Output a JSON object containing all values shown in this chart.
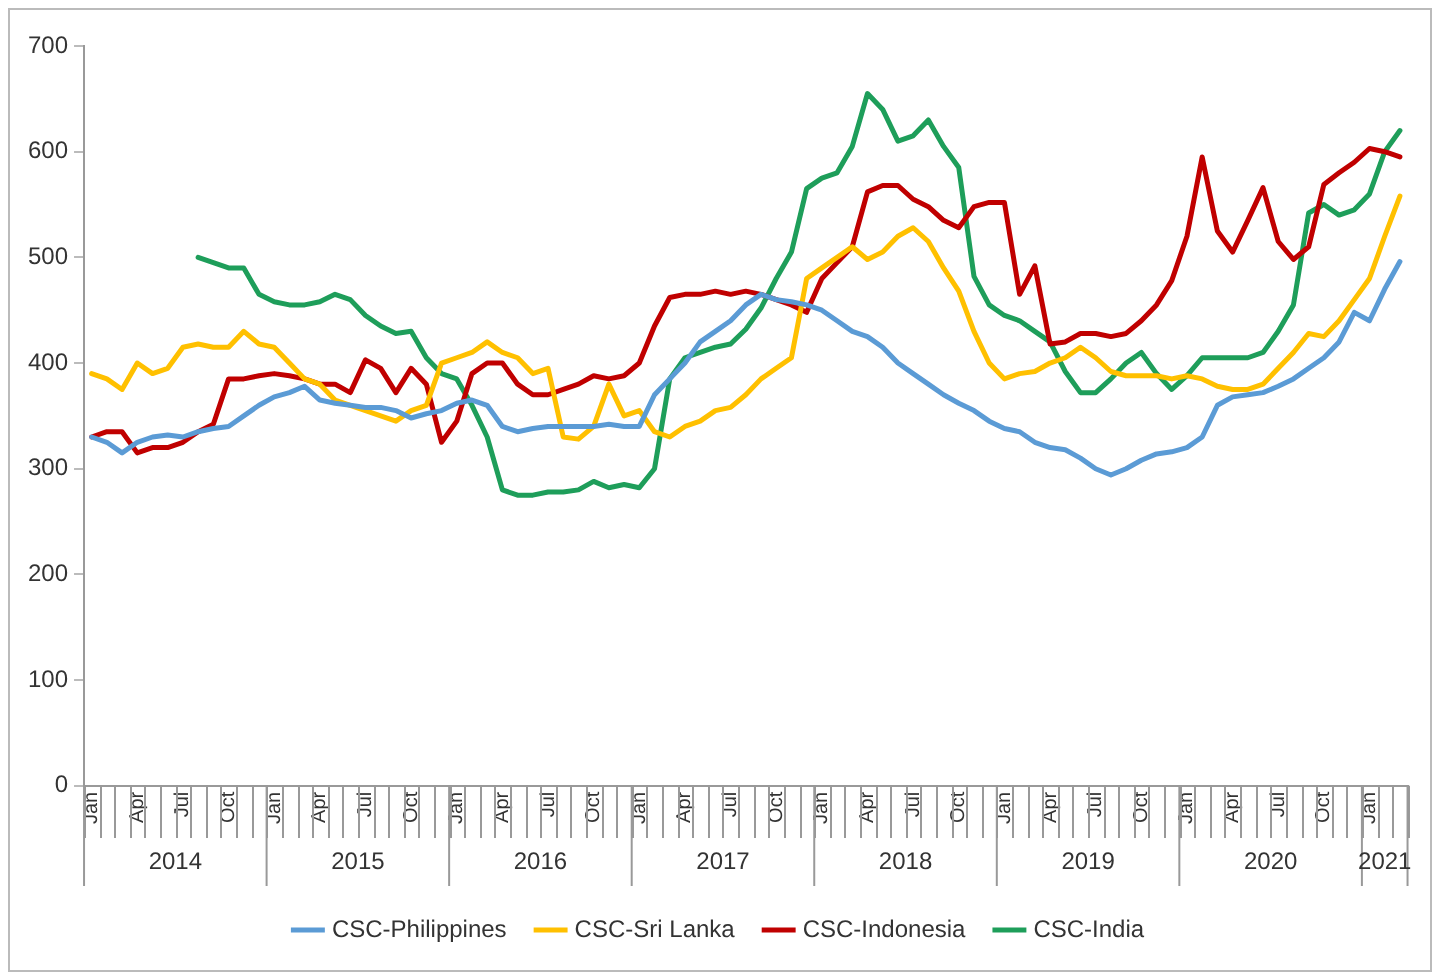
{
  "chart_data": {
    "type": "line",
    "categories": [
      "Jan",
      null,
      null,
      "Apr",
      null,
      null,
      "Jul",
      null,
      null,
      "Oct",
      null,
      null,
      "Jan",
      null,
      null,
      "Apr",
      null,
      null,
      "Jul",
      null,
      null,
      "Oct",
      null,
      null,
      "Jan",
      null,
      null,
      "Apr",
      null,
      null,
      "Jul",
      null,
      null,
      "Oct",
      null,
      null,
      "Jan",
      null,
      null,
      "Apr",
      null,
      null,
      "Jul",
      null,
      null,
      "Oct",
      null,
      null,
      "Jan",
      null,
      null,
      "Apr",
      null,
      null,
      "Jul",
      null,
      null,
      "Oct",
      null,
      null,
      "Jan",
      null,
      null,
      "Apr",
      null,
      null,
      "Jul",
      null,
      null,
      "Oct",
      null,
      null,
      "Jan",
      null,
      null,
      "Apr",
      null,
      null,
      "Jul",
      null,
      null,
      "Oct",
      null,
      null,
      "Jan",
      null,
      null
    ],
    "annotations": [
      "2014",
      "2015",
      "2016",
      "2017",
      "2018",
      "2019",
      "2020",
      "2021"
    ],
    "ylim": [
      0,
      700
    ],
    "yticks": [
      0,
      100,
      200,
      300,
      400,
      500,
      600,
      700
    ],
    "grid": false,
    "legend": "bottom",
    "marker": "none",
    "line_style": "solid",
    "series": [
      {
        "name": "CSC-Philippines",
        "color": "#5b9bd5",
        "values": [
          330,
          325,
          315,
          325,
          330,
          332,
          330,
          335,
          338,
          340,
          350,
          360,
          368,
          372,
          378,
          365,
          362,
          360,
          358,
          358,
          355,
          348,
          352,
          355,
          362,
          365,
          360,
          340,
          335,
          338,
          340,
          340,
          340,
          340,
          342,
          340,
          340,
          370,
          385,
          400,
          420,
          430,
          440,
          455,
          465,
          460,
          458,
          455,
          450,
          440,
          430,
          425,
          415,
          400,
          390,
          380,
          370,
          362,
          355,
          345,
          338,
          335,
          325,
          320,
          318,
          310,
          300,
          294,
          300,
          308,
          314,
          316,
          320,
          330,
          360,
          368,
          370,
          372,
          378,
          385,
          395,
          405,
          420,
          448,
          440,
          470,
          496
        ]
      },
      {
        "name": "CSC-Sri Lanka",
        "color": "#ffc000",
        "values": [
          390,
          385,
          375,
          400,
          390,
          395,
          415,
          418,
          415,
          415,
          430,
          418,
          415,
          400,
          385,
          380,
          365,
          360,
          355,
          350,
          345,
          355,
          360,
          400,
          405,
          410,
          420,
          410,
          405,
          390,
          395,
          330,
          328,
          340,
          380,
          350,
          355,
          335,
          330,
          340,
          345,
          355,
          358,
          370,
          385,
          395,
          405,
          480,
          490,
          500,
          510,
          498,
          505,
          520,
          528,
          515,
          490,
          468,
          430,
          400,
          385,
          390,
          392,
          400,
          405,
          415,
          405,
          392,
          388,
          388,
          388,
          385,
          388,
          385,
          378,
          375,
          375,
          380,
          395,
          410,
          428,
          425,
          440,
          460,
          480,
          520,
          558
        ]
      },
      {
        "name": "CSC-Indonesia",
        "color": "#c00000",
        "values": [
          330,
          335,
          335,
          315,
          320,
          320,
          325,
          335,
          342,
          385,
          385,
          388,
          390,
          388,
          385,
          380,
          380,
          372,
          403,
          395,
          372,
          395,
          380,
          325,
          345,
          390,
          400,
          400,
          380,
          370,
          370,
          375,
          380,
          388,
          385,
          388,
          400,
          435,
          462,
          465,
          465,
          468,
          465,
          468,
          465,
          460,
          455,
          448,
          480,
          495,
          510,
          562,
          568,
          568,
          555,
          548,
          535,
          528,
          548,
          552,
          552,
          465,
          492,
          418,
          420,
          428,
          428,
          425,
          428,
          440,
          455,
          478,
          520,
          595,
          525,
          505,
          535,
          566,
          515,
          498,
          510,
          569,
          580,
          590,
          603,
          600,
          595
        ]
      },
      {
        "name": "CSC-India",
        "color": "#1e9e5a",
        "values": [
          null,
          null,
          null,
          null,
          null,
          null,
          null,
          500,
          495,
          490,
          490,
          465,
          458,
          455,
          455,
          458,
          465,
          460,
          445,
          435,
          428,
          430,
          405,
          390,
          385,
          360,
          330,
          280,
          275,
          275,
          278,
          278,
          280,
          288,
          282,
          285,
          282,
          300,
          385,
          405,
          410,
          415,
          418,
          432,
          452,
          480,
          505,
          565,
          575,
          580,
          605,
          655,
          640,
          610,
          615,
          630,
          605,
          585,
          482,
          455,
          445,
          440,
          430,
          420,
          392,
          372,
          372,
          385,
          400,
          410,
          390,
          375,
          388,
          405,
          405,
          405,
          405,
          410,
          430,
          455,
          542,
          550,
          540,
          545,
          560,
          600,
          620
        ]
      }
    ]
  }
}
